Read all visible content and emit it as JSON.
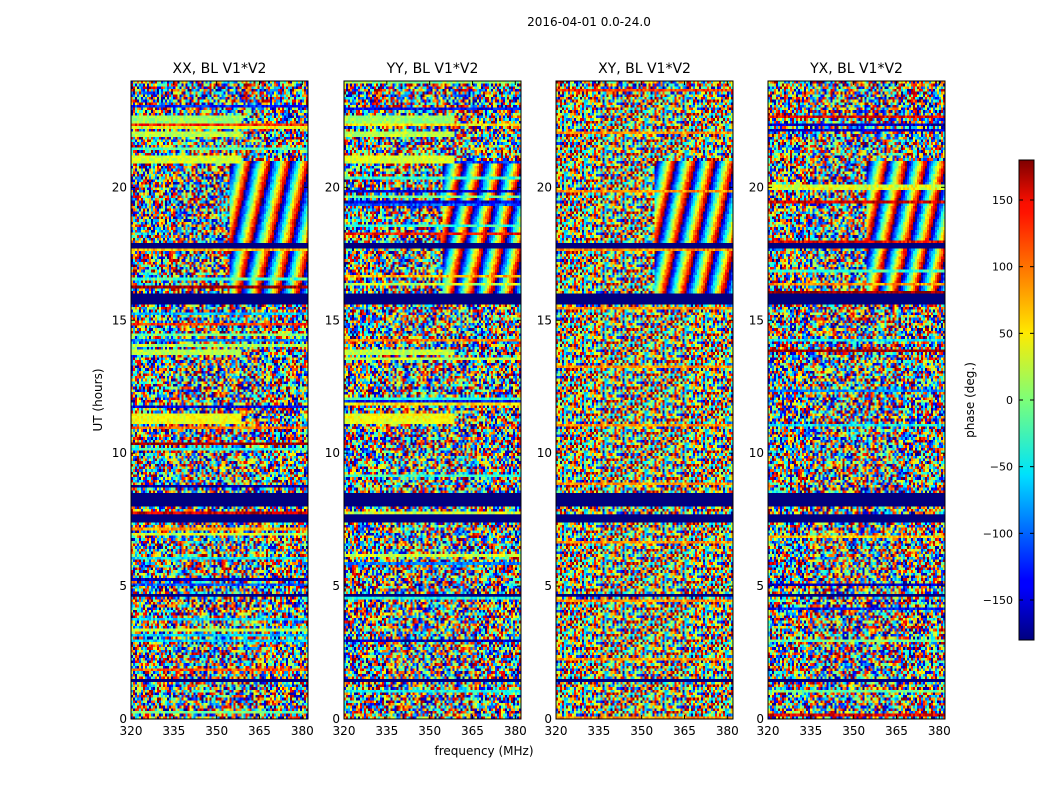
{
  "figure_title": "2016-04-01 0.0-24.0",
  "chart_data": {
    "type": "heatmap",
    "title": "2016-04-01 0.0-24.0",
    "xlabel": "frequency (MHz)",
    "ylabel": "UT (hours)",
    "xlim": [
      320,
      382
    ],
    "ylim": [
      0,
      24
    ],
    "x_ticks": [
      320,
      335,
      350,
      365,
      380
    ],
    "x_tick_labels": [
      "320",
      "335",
      "350",
      "365",
      "380"
    ],
    "y_ticks": [
      0,
      5,
      10,
      15,
      20
    ],
    "y_tick_labels": [
      "0",
      "5",
      "10",
      "15",
      "20"
    ],
    "panels": [
      {
        "title": "XX, BL V1*V2",
        "polarization": "XX"
      },
      {
        "title": "YY, BL V1*V2",
        "polarization": "YY"
      },
      {
        "title": "XY, BL V1*V2",
        "polarization": "XY"
      },
      {
        "title": "YX, BL V1*V2",
        "polarization": "YX"
      }
    ],
    "colorbar": {
      "label": "phase (deg.)",
      "range": [
        -180,
        180
      ],
      "colormap": "jet",
      "ticks": [
        -150,
        -100,
        -50,
        0,
        50,
        100,
        150
      ],
      "tick_labels": [
        "−150",
        "−100",
        "−50",
        "0",
        "50",
        "100",
        "150"
      ]
    },
    "coherent_bands_hours": [
      {
        "start": 22.4,
        "end": 22.7,
        "phase": 10
      },
      {
        "start": 21.9,
        "end": 22.1,
        "phase": 20
      },
      {
        "start": 20.9,
        "end": 21.2,
        "phase": 30
      },
      {
        "start": 13.7,
        "end": 13.9,
        "phase": 20
      },
      {
        "start": 11.1,
        "end": 11.5,
        "phase": 40
      }
    ],
    "flagged_bands_hours": [
      {
        "start": 17.7,
        "end": 17.9
      },
      {
        "start": 15.6,
        "end": 16.0
      },
      {
        "start": 8.0,
        "end": 8.5
      },
      {
        "start": 7.4,
        "end": 7.7
      },
      {
        "start": 4.6,
        "end": 4.7
      },
      {
        "start": 1.4,
        "end": 1.5
      }
    ]
  }
}
